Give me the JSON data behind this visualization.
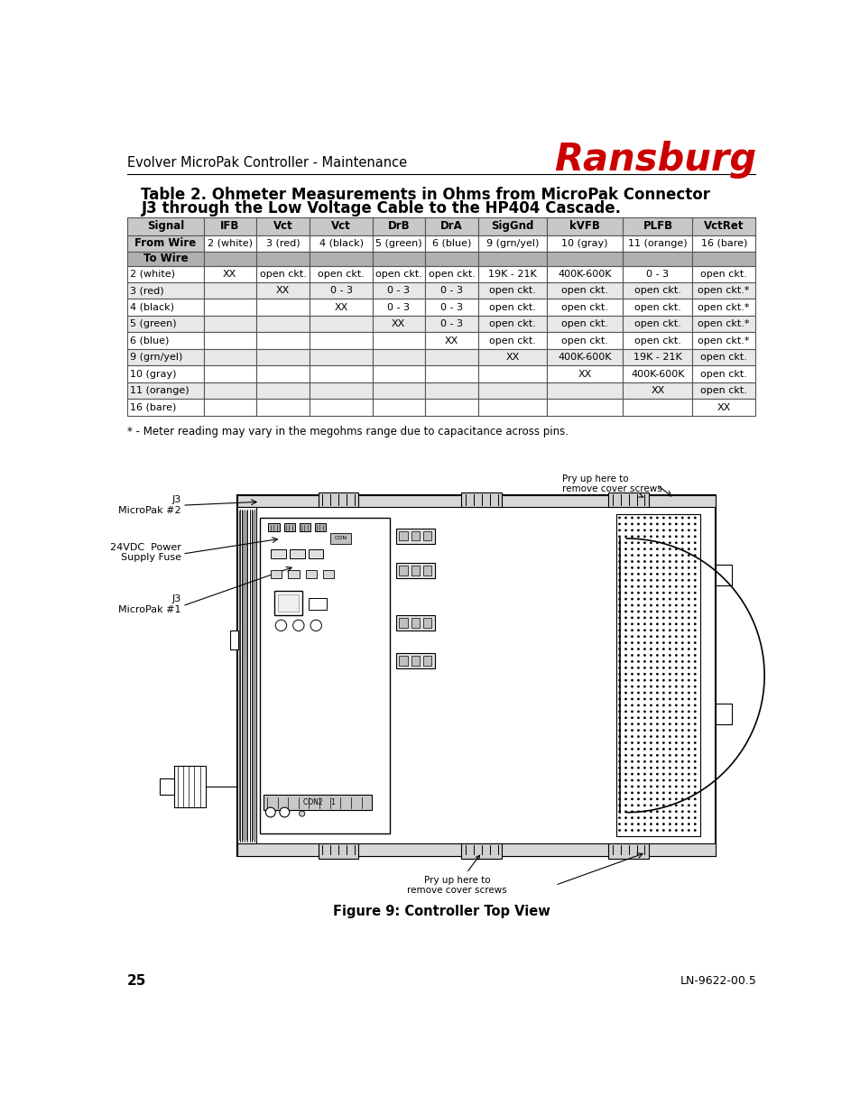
{
  "page_header": "Evolver MicroPak Controller - Maintenance",
  "brand": "Ransburg",
  "brand_color": "#cc0000",
  "table_title_line1": "Table 2. Ohmeter Measurements in Ohms from MicroPak Connector",
  "table_title_line2": "J3 through the Low Voltage Cable to the HP404 Cascade.",
  "col_headers": [
    "Signal",
    "IFB",
    "Vct",
    "Vct",
    "DrB",
    "DrA",
    "SigGnd",
    "kVFB",
    "PLFB",
    "VctRet"
  ],
  "row2_label": "From Wire",
  "row2_vals": [
    "2 (white)",
    "3 (red)",
    "4 (black)",
    "5 (green)",
    "6 (blue)",
    "9 (grn/yel)",
    "10 (gray)",
    "11 (orange)",
    "16 (bare)"
  ],
  "row3_label": "To Wire",
  "data_rows": [
    [
      "2 (white)",
      "XX",
      "open ckt.",
      "open ckt.",
      "open ckt.",
      "open ckt.",
      "19K - 21K",
      "400K-600K",
      "0 - 3",
      "open ckt."
    ],
    [
      "3 (red)",
      "",
      "XX",
      "0 - 3",
      "0 - 3",
      "0 - 3",
      "open ckt.",
      "open ckt.",
      "open ckt.",
      "open ckt.*"
    ],
    [
      "4 (black)",
      "",
      "",
      "XX",
      "0 - 3",
      "0 - 3",
      "open ckt.",
      "open ckt.",
      "open ckt.",
      "open ckt.*"
    ],
    [
      "5 (green)",
      "",
      "",
      "",
      "XX",
      "0 - 3",
      "open ckt.",
      "open ckt.",
      "open ckt.",
      "open ckt.*"
    ],
    [
      "6 (blue)",
      "",
      "",
      "",
      "",
      "XX",
      "open ckt.",
      "open ckt.",
      "open ckt.",
      "open ckt.*"
    ],
    [
      "9 (grn/yel)",
      "",
      "",
      "",
      "",
      "",
      "XX",
      "400K-600K",
      "19K - 21K",
      "open ckt."
    ],
    [
      "10 (gray)",
      "",
      "",
      "",
      "",
      "",
      "",
      "XX",
      "400K-600K",
      "open ckt."
    ],
    [
      "11 (orange)",
      "",
      "",
      "",
      "",
      "",
      "",
      "",
      "XX",
      "open ckt."
    ],
    [
      "16 (bare)",
      "",
      "",
      "",
      "",
      "",
      "",
      "",
      "",
      "XX"
    ]
  ],
  "footnote": "* - Meter reading may vary in the megohms range due to capacitance across pins.",
  "figure_caption": "Figure 9: Controller Top View",
  "page_num": "25",
  "doc_num": "LN-9622-00.5",
  "header_bg": "#c8c8c8",
  "row2_bg": "#ffffff",
  "row3_bg": "#b0b0b0",
  "data_row_bg_even": "#ffffff",
  "data_row_bg_odd": "#e8e8e8",
  "table_border": "#666666",
  "bg_color": "#ffffff"
}
